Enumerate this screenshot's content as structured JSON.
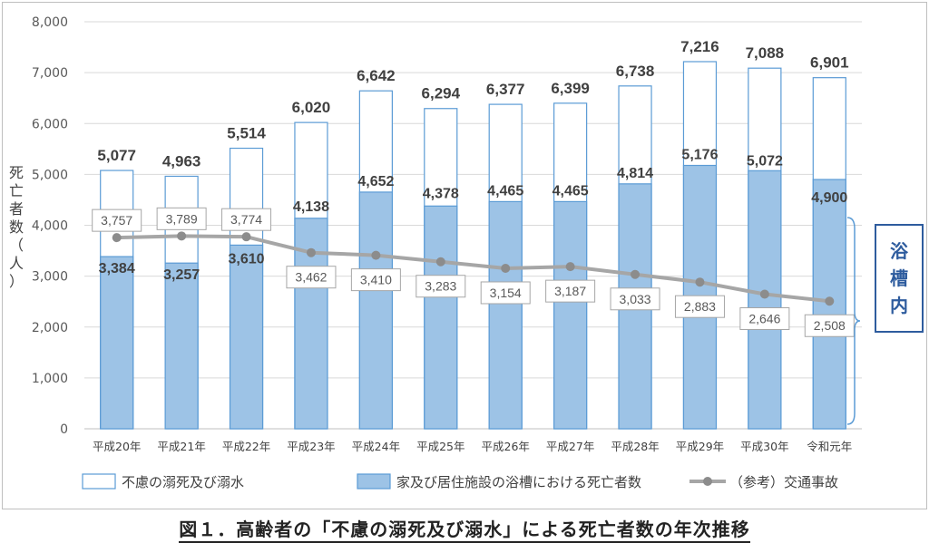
{
  "caption": "図１．高齢者の「不慮の溺死及び溺水」による死亡者数の年次推移",
  "chart_data": {
    "type": "bar",
    "ylabel_chars": [
      "死",
      "亡",
      "者",
      "数",
      "（",
      "人",
      "）"
    ],
    "ylim": [
      0,
      8000
    ],
    "yticks": [
      "0",
      "1,000",
      "2,000",
      "3,000",
      "4,000",
      "5,000",
      "6,000",
      "7,000",
      "8,000"
    ],
    "categories": [
      "平成20年",
      "平成21年",
      "平成22年",
      "平成23年",
      "平成24年",
      "平成25年",
      "平成26年",
      "平成27年",
      "平成28年",
      "平成29年",
      "平成30年",
      "令和元年"
    ],
    "series": [
      {
        "name": "不慮の溺死及び溺水",
        "kind": "bar-outline",
        "values": [
          5077,
          4963,
          5514,
          6020,
          6642,
          6294,
          6377,
          6399,
          6738,
          7216,
          7088,
          6901
        ],
        "labels": [
          "5,077",
          "4,963",
          "5,514",
          "6,020",
          "6,642",
          "6,294",
          "6,377",
          "6,399",
          "6,738",
          "7,216",
          "7,088",
          "6,901"
        ]
      },
      {
        "name": "家及び居住施設の浴槽における死亡者数",
        "kind": "bar-filled",
        "values": [
          3384,
          3257,
          3610,
          4138,
          4652,
          4378,
          4465,
          4465,
          4814,
          5176,
          5072,
          4900
        ],
        "labels": [
          "3,384",
          "3,257",
          "3,610",
          "4,138",
          "4,652",
          "4,378",
          "4,465",
          "4,465",
          "4,814",
          "5,176",
          "5,072",
          "4,900"
        ]
      },
      {
        "name": "（参考）交通事故",
        "kind": "line",
        "values": [
          3757,
          3789,
          3774,
          3462,
          3410,
          3283,
          3154,
          3187,
          3033,
          2883,
          2646,
          2508
        ],
        "labels": [
          "3,757",
          "3,789",
          "3,774",
          "3,462",
          "3,410",
          "3,283",
          "3,154",
          "3,187",
          "3,033",
          "2,883",
          "2,646",
          "2,508"
        ]
      }
    ],
    "annotation_chars": [
      "浴",
      "槽",
      "内"
    ],
    "legend_position": "bottom",
    "colors": {
      "outline": "#5b9bd5",
      "fill": "#9dc3e6",
      "line": "#a6a6a6",
      "grid": "#d9d9d9",
      "annotation": "#2e5c9e"
    }
  }
}
